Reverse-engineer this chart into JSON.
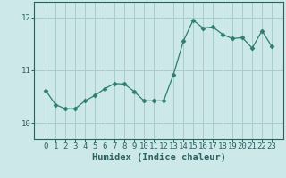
{
  "x": [
    0,
    1,
    2,
    3,
    4,
    5,
    6,
    7,
    8,
    9,
    10,
    11,
    12,
    13,
    14,
    15,
    16,
    17,
    18,
    19,
    20,
    21,
    22,
    23
  ],
  "y": [
    10.62,
    10.35,
    10.27,
    10.27,
    10.42,
    10.52,
    10.65,
    10.75,
    10.74,
    10.6,
    10.42,
    10.42,
    10.42,
    10.92,
    11.55,
    11.95,
    11.8,
    11.82,
    11.68,
    11.6,
    11.62,
    11.42,
    11.75,
    11.45
  ],
  "line_color": "#2e7d6e",
  "marker": "D",
  "marker_size": 2.5,
  "bg_color": "#cce8e8",
  "grid_color": "#aacccc",
  "xlabel": "Humidex (Indice chaleur)",
  "ylim": [
    9.7,
    12.3
  ],
  "yticks": [
    10,
    11,
    12
  ],
  "xticks": [
    0,
    1,
    2,
    3,
    4,
    5,
    6,
    7,
    8,
    9,
    10,
    11,
    12,
    13,
    14,
    15,
    16,
    17,
    18,
    19,
    20,
    21,
    22,
    23
  ],
  "tick_label_size": 6.5,
  "xlabel_size": 7.5,
  "axis_color": "#2e6060",
  "spine_color": "#2e6060"
}
